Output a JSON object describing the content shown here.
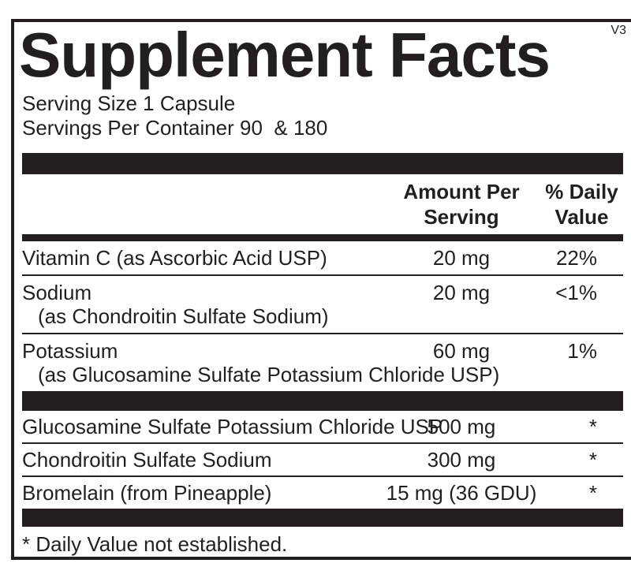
{
  "panel": {
    "version": "V3",
    "title": "Supplement Facts",
    "serving_size": "Serving Size 1 Capsule",
    "servings_per_container": "Servings Per Container 90  & 180",
    "columns": {
      "amount_header": "Amount Per\nServing",
      "daily_value_header": "% Daily\nValue"
    },
    "nutrients": [
      {
        "name": "Vitamin C (as Ascorbic Acid USP)",
        "sub": "",
        "amount": "20 mg",
        "dv": "22%"
      },
      {
        "name": "Sodium",
        "sub": "(as Chondroitin Sulfate Sodium)",
        "amount": "20 mg",
        "dv": "<1%"
      },
      {
        "name": "Potassium",
        "sub": "(as Glucosamine Sulfate Potassium Chloride USP)",
        "amount": "60 mg",
        "dv": "1%"
      }
    ],
    "ingredients": [
      {
        "name": "Glucosamine Sulfate Potassium Chloride USP",
        "amount": "500 mg",
        "dv": "*"
      },
      {
        "name": "Chondroitin Sulfate Sodium",
        "amount": "300 mg",
        "dv": "*"
      },
      {
        "name": "Bromelain (from Pineapple)",
        "amount": "15 mg (36 GDU)",
        "dv": "*"
      }
    ],
    "footnote": "* Daily Value not established.",
    "colors": {
      "ink": "#231f20",
      "background": "#ffffff"
    }
  }
}
